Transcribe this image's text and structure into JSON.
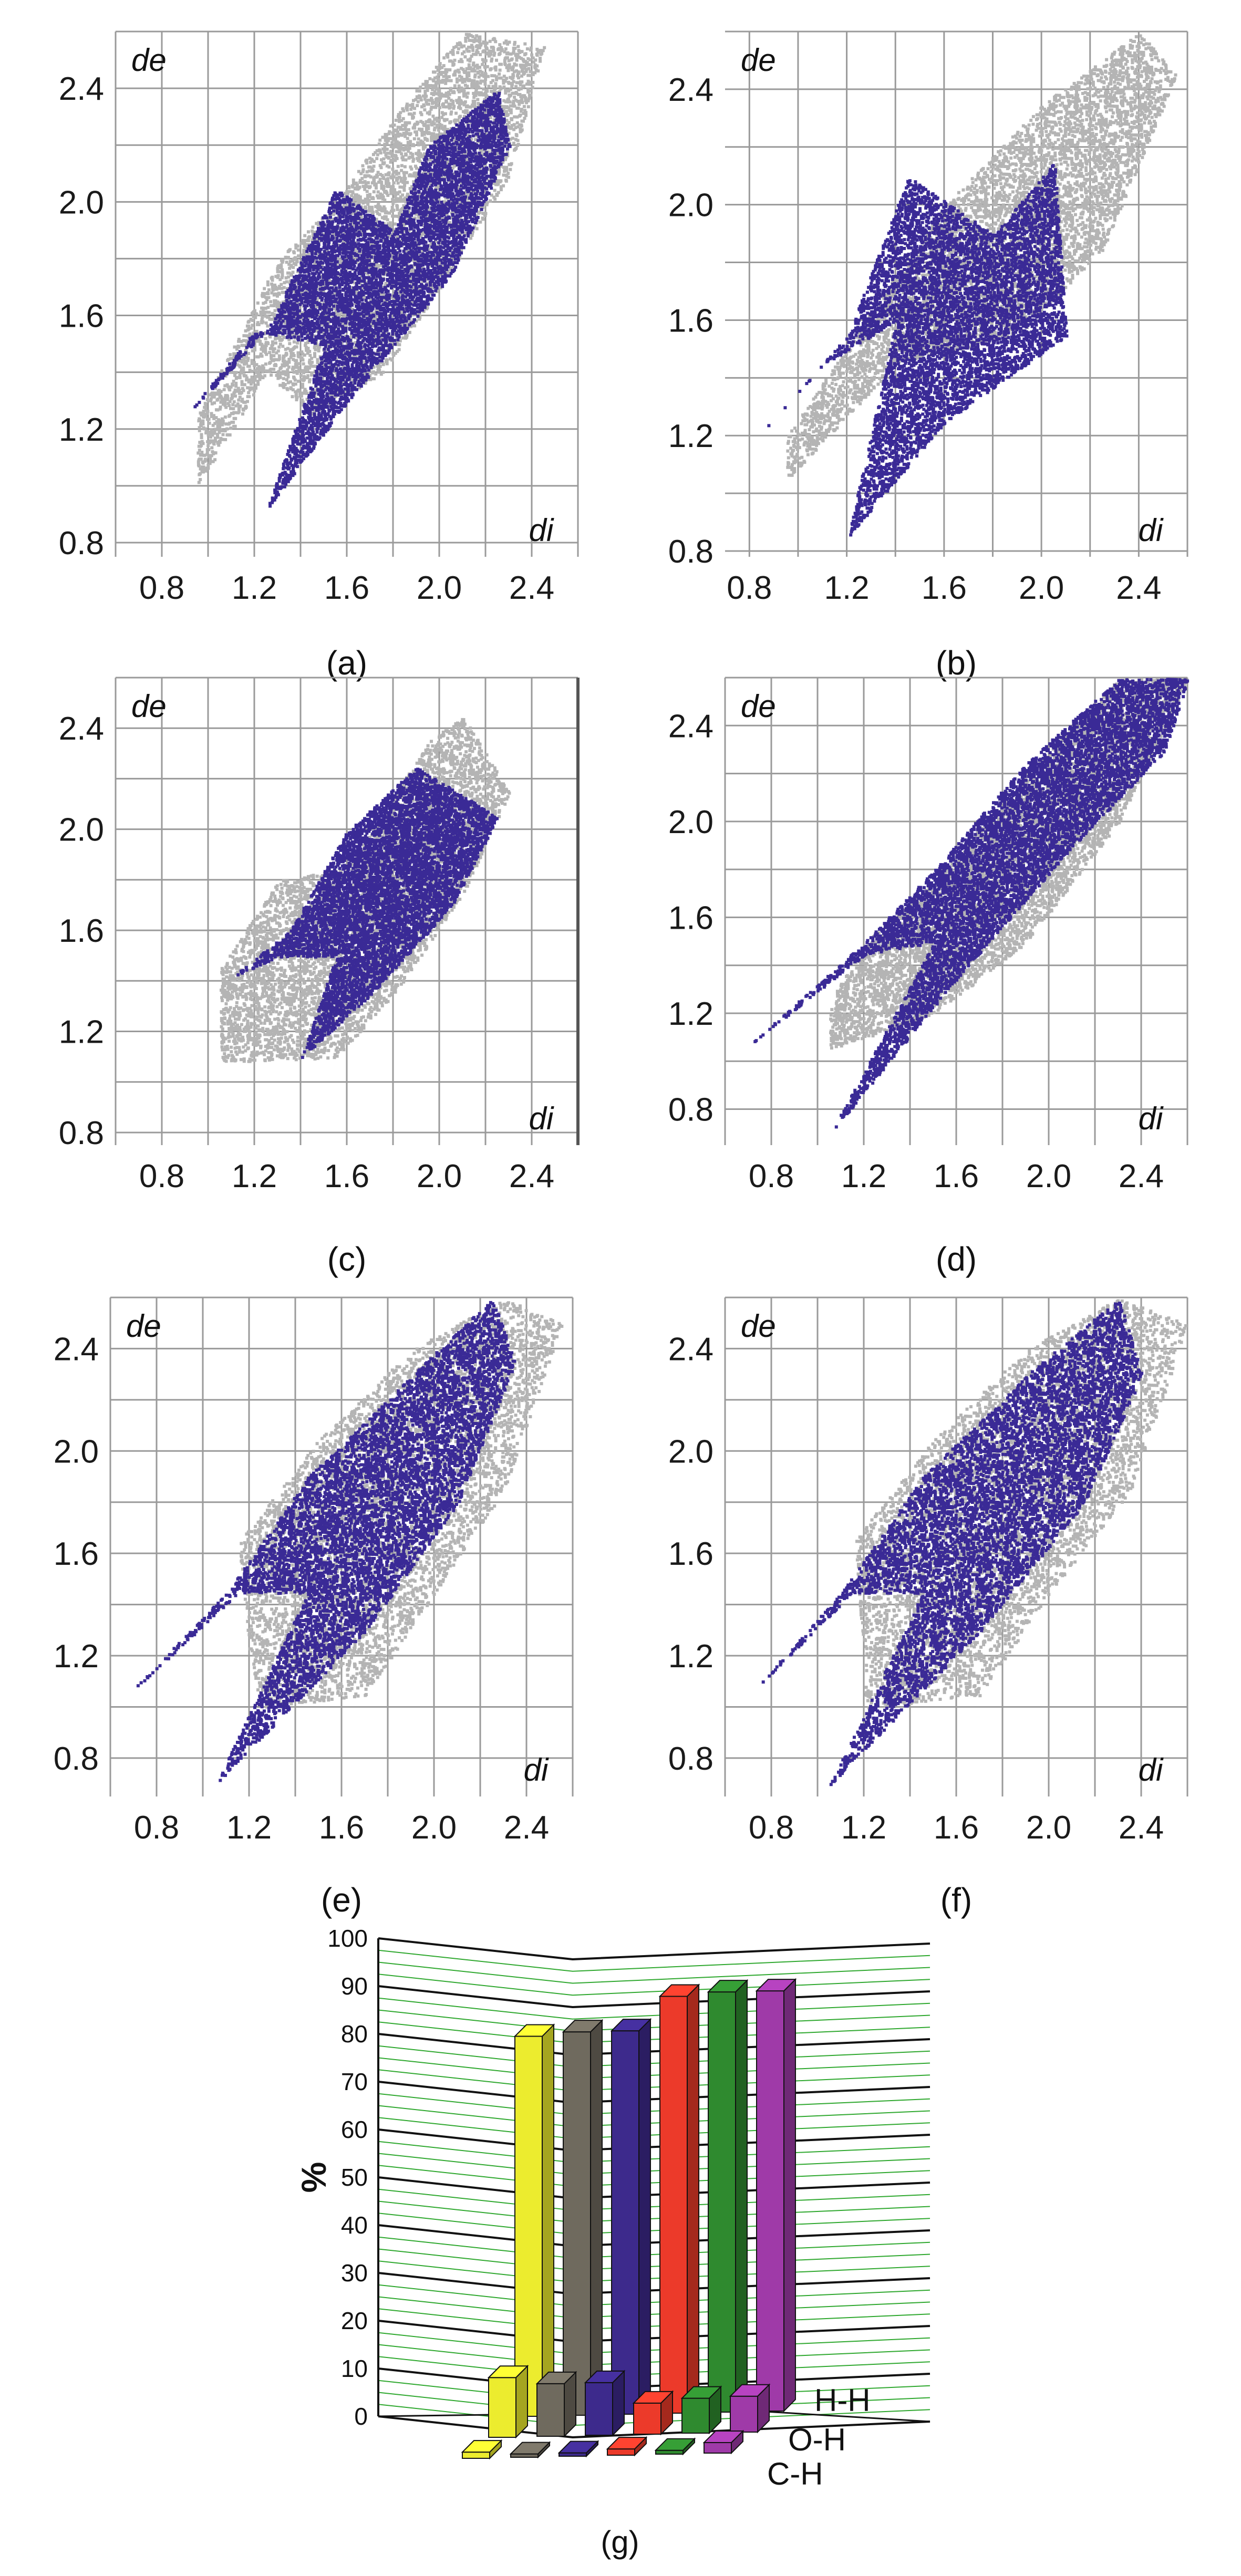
{
  "panels": [
    {
      "id": "a",
      "caption": "(a)",
      "xlabel": "di",
      "ylabel": "de",
      "x_ticks": [
        "0.8",
        "1.2",
        "1.6",
        "2.0",
        "2.4"
      ],
      "y_ticks": [
        "2.4",
        "2.0",
        "1.6",
        "1.2",
        "0.8"
      ]
    },
    {
      "id": "b",
      "caption": "(b)",
      "xlabel": "di",
      "ylabel": "de",
      "x_ticks": [
        "0.8",
        "1.2",
        "1.6",
        "2.0",
        "2.4"
      ],
      "y_ticks": [
        "2.4",
        "2.0",
        "1.6",
        "1.2",
        "0.8"
      ]
    },
    {
      "id": "c",
      "caption": "(c)",
      "xlabel": "di",
      "ylabel": "de",
      "x_ticks": [
        "0.8",
        "1.2",
        "1.6",
        "2.0",
        "2.4"
      ],
      "y_ticks": [
        "2.4",
        "2.0",
        "1.6",
        "1.2",
        "0.8"
      ]
    },
    {
      "id": "d",
      "caption": "(d)",
      "xlabel": "di",
      "ylabel": "de",
      "x_ticks": [
        "0.8",
        "1.2",
        "1.6",
        "2.0",
        "2.4"
      ],
      "y_ticks": [
        "2.4",
        "2.0",
        "1.6",
        "1.2",
        "0.8"
      ]
    },
    {
      "id": "e",
      "caption": "(e)",
      "xlabel": "di",
      "ylabel": "de",
      "x_ticks": [
        "0.8",
        "1.2",
        "1.6",
        "2.0",
        "2.4"
      ],
      "y_ticks": [
        "2.4",
        "2.0",
        "1.6",
        "1.2",
        "0.8"
      ]
    },
    {
      "id": "f",
      "caption": "(f)",
      "xlabel": "di",
      "ylabel": "de",
      "x_ticks": [
        "0.8",
        "1.2",
        "1.6",
        "2.0",
        "2.4"
      ],
      "y_ticks": [
        "2.4",
        "2.0",
        "1.6",
        "1.2",
        "0.8"
      ]
    }
  ],
  "bar_caption": "(g)",
  "chart_data": [
    {
      "type": "scatter",
      "panel": "a",
      "xlabel": "di",
      "ylabel": "de",
      "xlim": [
        0.6,
        2.6
      ],
      "ylim": [
        0.75,
        2.6
      ],
      "grid": true,
      "series": [
        {
          "color": "#b4b4b4",
          "region": [
            [
              0.95,
              1.0
            ],
            [
              1.25,
              1.4
            ],
            [
              1.45,
              1.25
            ],
            [
              1.75,
              1.4
            ],
            [
              2.0,
              1.7
            ],
            [
              2.3,
              2.1
            ],
            [
              2.45,
              2.55
            ],
            [
              2.1,
              2.6
            ],
            [
              1.8,
              2.3
            ],
            [
              1.55,
              2.0
            ],
            [
              1.3,
              1.8
            ],
            [
              0.95,
              1.25
            ]
          ]
        },
        {
          "color": "#3a2a96",
          "region": [
            [
              0.9,
              1.25
            ],
            [
              1.25,
              1.55
            ],
            [
              1.55,
              2.05
            ],
            [
              1.8,
              1.9
            ],
            [
              1.95,
              2.2
            ],
            [
              2.25,
              2.4
            ],
            [
              2.3,
              2.2
            ],
            [
              2.05,
              1.75
            ],
            [
              1.6,
              1.3
            ],
            [
              1.25,
              0.92
            ],
            [
              1.5,
              1.5
            ],
            [
              1.2,
              1.55
            ]
          ]
        }
      ]
    },
    {
      "type": "scatter",
      "panel": "b",
      "xlabel": "di",
      "ylabel": "de",
      "xlim": [
        0.7,
        2.6
      ],
      "ylim": [
        0.78,
        2.6
      ],
      "grid": true,
      "series": [
        {
          "color": "#b4b4b4",
          "region": [
            [
              0.95,
              1.05
            ],
            [
              1.4,
              1.45
            ],
            [
              1.9,
              1.55
            ],
            [
              2.25,
              1.85
            ],
            [
              2.55,
              2.45
            ],
            [
              2.4,
              2.6
            ],
            [
              2.0,
              2.35
            ],
            [
              1.6,
              2.0
            ],
            [
              1.35,
              1.7
            ],
            [
              0.95,
              1.2
            ]
          ]
        },
        {
          "color": "#3a2a96",
          "region": [
            [
              0.8,
              1.17
            ],
            [
              1.2,
              1.55
            ],
            [
              1.45,
              2.1
            ],
            [
              1.8,
              1.9
            ],
            [
              2.05,
              2.15
            ],
            [
              2.1,
              1.55
            ],
            [
              1.6,
              1.25
            ],
            [
              1.2,
              0.85
            ],
            [
              1.4,
              1.6
            ],
            [
              1.1,
              1.45
            ]
          ]
        }
      ]
    },
    {
      "type": "scatter",
      "panel": "c",
      "xlabel": "di",
      "ylabel": "de",
      "xlim": [
        0.6,
        2.6
      ],
      "ylim": [
        0.75,
        2.6
      ],
      "grid": true,
      "series": [
        {
          "color": "#b4b4b4",
          "region": [
            [
              1.05,
              1.08
            ],
            [
              1.55,
              1.1
            ],
            [
              1.8,
              1.35
            ],
            [
              2.1,
              1.75
            ],
            [
              2.3,
              2.15
            ],
            [
              2.1,
              2.45
            ],
            [
              1.95,
              2.35
            ],
            [
              1.6,
              1.85
            ],
            [
              1.3,
              1.8
            ],
            [
              1.05,
              1.45
            ]
          ]
        },
        {
          "color": "#3a2a96",
          "region": [
            [
              1.1,
              1.42
            ],
            [
              1.35,
              1.6
            ],
            [
              1.6,
              2.0
            ],
            [
              1.9,
              2.25
            ],
            [
              2.25,
              2.05
            ],
            [
              2.05,
              1.7
            ],
            [
              1.7,
              1.35
            ],
            [
              1.4,
              1.1
            ],
            [
              1.55,
              1.5
            ],
            [
              1.3,
              1.5
            ]
          ]
        }
      ]
    },
    {
      "type": "scatter",
      "panel": "d",
      "xlabel": "di",
      "ylabel": "de",
      "xlim": [
        0.6,
        2.6
      ],
      "ylim": [
        0.65,
        2.6
      ],
      "grid": true,
      "series": [
        {
          "color": "#b4b4b4",
          "region": [
            [
              1.05,
              1.05
            ],
            [
              1.5,
              1.2
            ],
            [
              1.9,
              1.5
            ],
            [
              2.3,
              2.0
            ],
            [
              2.6,
              2.6
            ],
            [
              2.3,
              2.6
            ],
            [
              1.9,
              2.2
            ],
            [
              1.5,
              1.75
            ],
            [
              1.2,
              1.5
            ],
            [
              1.05,
              1.25
            ]
          ]
        },
        {
          "color": "#3a2a96",
          "region": [
            [
              0.7,
              1.07
            ],
            [
              1.2,
              1.5
            ],
            [
              1.5,
              1.8
            ],
            [
              1.9,
              2.25
            ],
            [
              2.3,
              2.6
            ],
            [
              2.6,
              2.6
            ],
            [
              2.5,
              2.3
            ],
            [
              2.1,
              1.9
            ],
            [
              1.6,
              1.35
            ],
            [
              1.05,
              0.7
            ],
            [
              1.5,
              1.5
            ],
            [
              1.2,
              1.45
            ]
          ]
        }
      ]
    },
    {
      "type": "scatter",
      "panel": "e",
      "xlabel": "di",
      "ylabel": "de",
      "xlim": [
        0.6,
        2.6
      ],
      "ylim": [
        0.65,
        2.6
      ],
      "grid": true,
      "series": [
        {
          "color": "#b4b4b4",
          "region": [
            [
              1.25,
              1.0
            ],
            [
              1.7,
              1.05
            ],
            [
              2.0,
              1.45
            ],
            [
              2.3,
              1.85
            ],
            [
              2.55,
              2.5
            ],
            [
              2.3,
              2.6
            ],
            [
              1.9,
              2.4
            ],
            [
              1.5,
              2.05
            ],
            [
              1.15,
              1.65
            ],
            [
              1.2,
              1.2
            ]
          ]
        },
        {
          "color": "#3a2a96",
          "region": [
            [
              0.65,
              1.03
            ],
            [
              1.1,
              1.45
            ],
            [
              1.45,
              1.9
            ],
            [
              1.9,
              2.3
            ],
            [
              2.25,
              2.6
            ],
            [
              2.35,
              2.35
            ],
            [
              2.1,
              1.8
            ],
            [
              1.7,
              1.3
            ],
            [
              1.05,
              0.7
            ],
            [
              1.45,
              1.45
            ],
            [
              1.15,
              1.45
            ]
          ]
        }
      ]
    },
    {
      "type": "scatter",
      "panel": "f",
      "xlabel": "di",
      "ylabel": "de",
      "xlim": [
        0.6,
        2.6
      ],
      "ylim": [
        0.65,
        2.6
      ],
      "grid": true,
      "series": [
        {
          "color": "#b4b4b4",
          "region": [
            [
              1.2,
              1.0
            ],
            [
              1.7,
              1.05
            ],
            [
              2.0,
              1.45
            ],
            [
              2.35,
              1.85
            ],
            [
              2.6,
              2.5
            ],
            [
              2.3,
              2.6
            ],
            [
              1.9,
              2.4
            ],
            [
              1.5,
              2.05
            ],
            [
              1.15,
              1.65
            ],
            [
              1.2,
              1.2
            ]
          ]
        },
        {
          "color": "#3a2a96",
          "region": [
            [
              0.7,
              1.05
            ],
            [
              1.1,
              1.45
            ],
            [
              1.45,
              1.9
            ],
            [
              1.9,
              2.3
            ],
            [
              2.3,
              2.6
            ],
            [
              2.4,
              2.3
            ],
            [
              2.15,
              1.8
            ],
            [
              1.7,
              1.3
            ],
            [
              1.05,
              0.7
            ],
            [
              1.45,
              1.45
            ],
            [
              1.15,
              1.45
            ]
          ]
        }
      ]
    },
    {
      "type": "bar",
      "panel": "g",
      "ylabel": "%",
      "ylim": [
        0,
        100
      ],
      "y_ticks": [
        "0",
        "10",
        "20",
        "30",
        "40",
        "50",
        "60",
        "70",
        "80",
        "90",
        "100"
      ],
      "depth_categories": [
        "C-H",
        "O-H",
        "H-H"
      ],
      "series": [
        {
          "color": "#ecec2e",
          "values": [
            1.3,
            12.5,
            79.5
          ]
        },
        {
          "color": "#6f6a5e",
          "values": [
            0.7,
            11.0,
            80.2
          ]
        },
        {
          "color": "#3d2a8c",
          "values": [
            0.7,
            11.0,
            80.2
          ]
        },
        {
          "color": "#ec3a2a",
          "values": [
            1.3,
            6.5,
            87.2
          ]
        },
        {
          "color": "#2f8a2f",
          "values": [
            0.8,
            7.3,
            87.9
          ]
        },
        {
          "color": "#9f3aa8",
          "values": [
            2.2,
            7.5,
            87.9
          ]
        }
      ]
    }
  ]
}
